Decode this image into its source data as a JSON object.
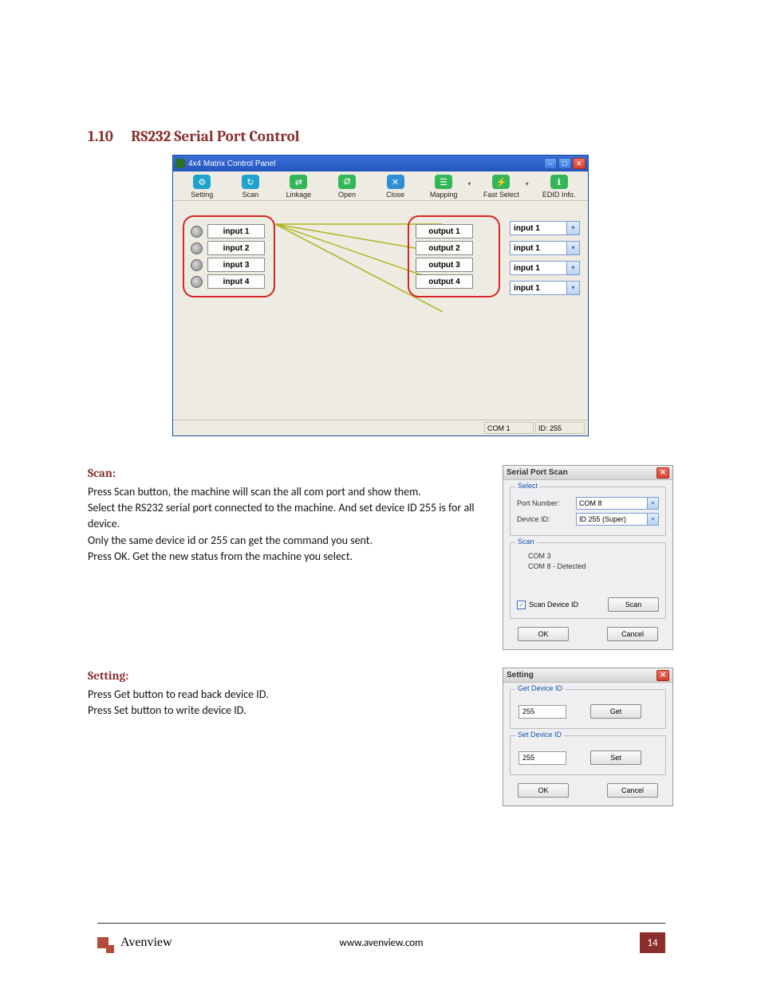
{
  "heading": {
    "num": "1.10",
    "text": "RS232 Serial Port Control"
  },
  "mainWindow": {
    "title": "4x4 Matrix Control Panel",
    "toolbar": [
      "Setting",
      "Scan",
      "Linkage",
      "Open",
      "Close",
      "Mapping",
      "Fast Select",
      "EDID Info."
    ],
    "toolbarColors": [
      "#1fa3cc",
      "#1fa3cc",
      "#33b657",
      "#33b657",
      "#2f8fd4",
      "#33b657",
      "#33b657",
      "#33b657"
    ],
    "inputs": [
      "input 1",
      "input 2",
      "input 3",
      "input 4"
    ],
    "outputs": [
      "output 1",
      "output 2",
      "output 3",
      "output 4"
    ],
    "selections": [
      "input 1",
      "input 1",
      "input 1",
      "input 1"
    ],
    "status": {
      "port": "COM 1",
      "id": "ID: 255"
    },
    "wires": {
      "color": "#afb41f",
      "lines": [
        [
          0,
          7,
          210,
          7
        ],
        [
          0,
          7,
          210,
          43
        ],
        [
          0,
          7,
          210,
          80
        ],
        [
          0,
          7,
          210,
          117
        ]
      ]
    }
  },
  "scan": {
    "heading": "Scan:",
    "p1": "Press Scan button, the machine will scan the all com port and show them.",
    "p2": "Select the RS232 serial port connected to the machine. And set device ID 255 is for all device.",
    "p3": "Only the same device id or 255 can get the command you sent.",
    "p4": "Press OK. Get the new status from the machine you select.",
    "dialog": {
      "title": "Serial Port Scan",
      "selectLegend": "Select",
      "portLabel": "Port Number:",
      "portValue": "COM 8",
      "devLabel": "Device ID:",
      "devValue": "ID 255 (Super)",
      "scanLegend": "Scan",
      "tree1": "COM 3",
      "tree2": "COM 8 - Detected",
      "chkLabel": "Scan Device ID",
      "scanBtn": "Scan",
      "ok": "OK",
      "cancel": "Cancel"
    }
  },
  "setting": {
    "heading": "Setting:",
    "p1": "Press Get button to read back device ID.",
    "p2": "Press Set button to write device ID.",
    "dialog": {
      "title": "Setting",
      "legend1": "Get Device ID",
      "val1": "255",
      "btn1": "Get",
      "legend2": "Set Device ID",
      "val2": "255",
      "btn2": "Set",
      "ok": "OK",
      "cancel": "Cancel"
    }
  },
  "footer": {
    "site": "www.avenview.com",
    "brand": "Avenview",
    "page": "14"
  }
}
